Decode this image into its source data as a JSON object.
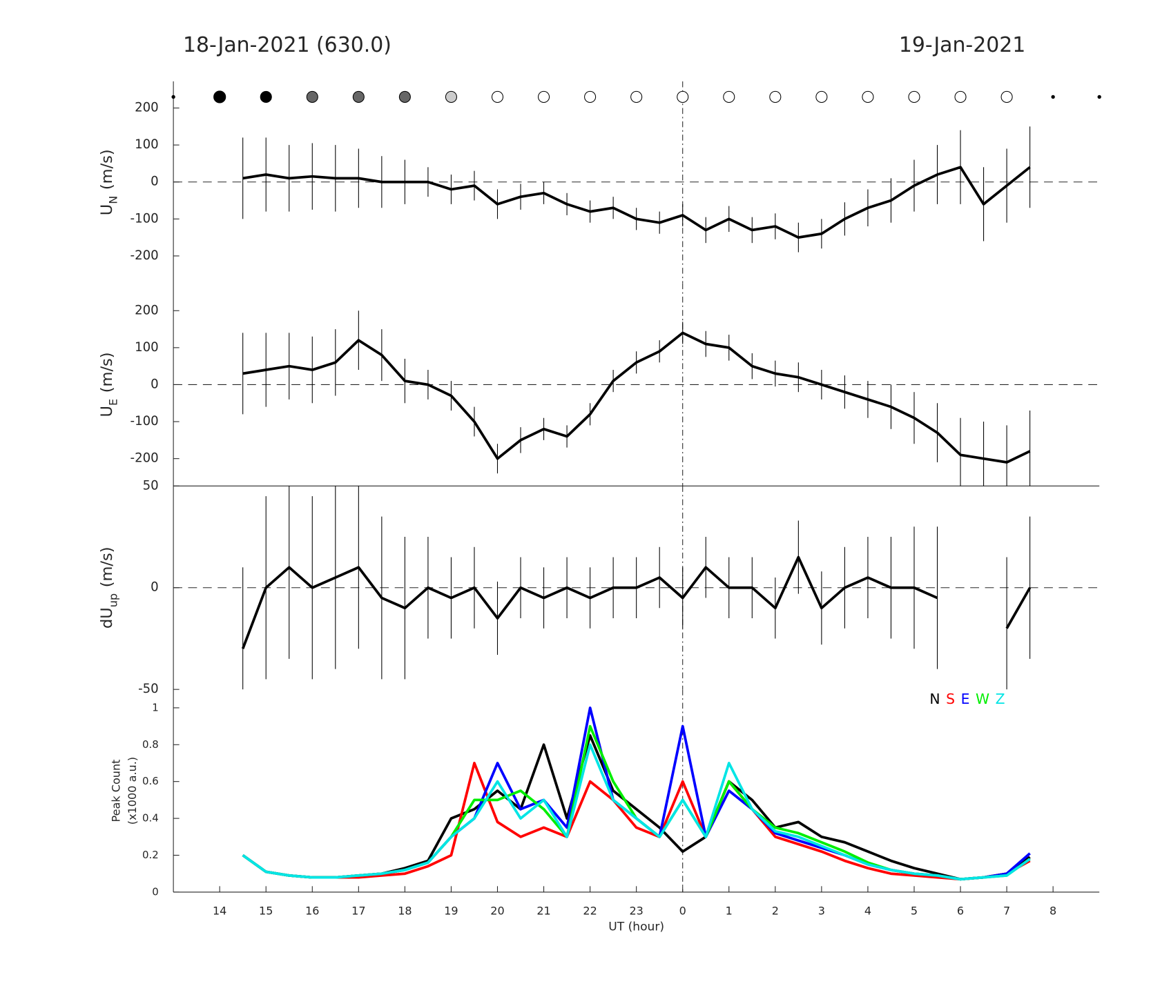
{
  "header": {
    "left": "18-Jan-2021 (630.0)",
    "right": "19-Jan-2021"
  },
  "chart_data": [
    {
      "type": "line",
      "ylabel": "U",
      "ylabel_sub": "N",
      "ylabel_unit": "(m/s)",
      "xlim": [
        13,
        33
      ],
      "ylim": [
        -274,
        272
      ],
      "yticks": [
        -200,
        -100,
        0,
        100,
        200
      ],
      "hline": 0,
      "vline": 24,
      "x": [
        14.5,
        15,
        15.5,
        16,
        16.5,
        17,
        17.5,
        18,
        18.5,
        19,
        19.5,
        20,
        20.5,
        21,
        21.5,
        22,
        22.5,
        23,
        23.5,
        24,
        24.5,
        25,
        25.5,
        26,
        26.5,
        27,
        27.5,
        28,
        28.5,
        29,
        29.5,
        30,
        30.5,
        31,
        31.5
      ],
      "series": [
        {
          "color": "#000000",
          "values": [
            10,
            20,
            10,
            15,
            10,
            10,
            0,
            0,
            0,
            -20,
            -10,
            -60,
            -40,
            -30,
            -60,
            -80,
            -70,
            -100,
            -110,
            -90,
            -130,
            -100,
            -130,
            -120,
            -150,
            -140,
            -100,
            -70,
            -50,
            -10,
            20,
            40,
            -60,
            -10,
            40
          ],
          "errors": [
            110,
            100,
            90,
            90,
            90,
            80,
            70,
            60,
            40,
            40,
            40,
            40,
            35,
            30,
            30,
            30,
            30,
            30,
            30,
            30,
            35,
            35,
            35,
            35,
            40,
            40,
            45,
            50,
            60,
            70,
            80,
            100,
            100,
            100,
            110
          ]
        }
      ],
      "markers": {
        "x": [
          13,
          14,
          15,
          16,
          17,
          18,
          19,
          20,
          21,
          22,
          23,
          24,
          25,
          26,
          27,
          28,
          29,
          30,
          31,
          32,
          33
        ],
        "colors": [
          "#000000",
          "#000000",
          "#000000",
          "#666666",
          "#666666",
          "#666666",
          "#cccccc",
          "#ffffff",
          "#ffffff",
          "#ffffff",
          "#ffffff",
          "#ffffff",
          "#ffffff",
          "#ffffff",
          "#ffffff",
          "#ffffff",
          "#ffffff",
          "#ffffff",
          "#ffffff",
          "#000000",
          "#000000"
        ],
        "sizes": [
          2,
          8,
          7.5,
          7.5,
          7.5,
          7.5,
          7.5,
          7.5,
          7.5,
          7.5,
          7.5,
          7.5,
          7.5,
          7.5,
          7.5,
          7.5,
          7.5,
          7.5,
          7.5,
          2,
          2
        ]
      }
    },
    {
      "type": "line",
      "ylabel": "U",
      "ylabel_sub": "E",
      "ylabel_unit": "(m/s)",
      "xlim": [
        13,
        33
      ],
      "ylim": [
        -274,
        274
      ],
      "yticks": [
        -200,
        -100,
        0,
        100,
        200
      ],
      "hline": 0,
      "vline": 24,
      "x": [
        14.5,
        15,
        15.5,
        16,
        16.5,
        17,
        17.5,
        18,
        18.5,
        19,
        19.5,
        20,
        20.5,
        21,
        21.5,
        22,
        22.5,
        23,
        23.5,
        24,
        24.5,
        25,
        25.5,
        26,
        26.5,
        27,
        27.5,
        28,
        28.5,
        29,
        29.5,
        30,
        30.5,
        31,
        31.5
      ],
      "series": [
        {
          "color": "#000000",
          "values": [
            30,
            40,
            50,
            40,
            60,
            120,
            80,
            10,
            0,
            -30,
            -100,
            -200,
            -150,
            -120,
            -140,
            -80,
            10,
            60,
            90,
            140,
            110,
            100,
            50,
            30,
            20,
            0,
            -20,
            -40,
            -60,
            -90,
            -130,
            -190,
            -200,
            -210,
            -180
          ],
          "errors": [
            110,
            100,
            90,
            90,
            90,
            80,
            70,
            60,
            40,
            40,
            40,
            40,
            35,
            30,
            30,
            30,
            30,
            30,
            30,
            30,
            35,
            35,
            35,
            35,
            40,
            40,
            45,
            50,
            60,
            70,
            80,
            100,
            100,
            100,
            110
          ]
        }
      ]
    },
    {
      "type": "line",
      "ylabel": "dU",
      "ylabel_sub": "up",
      "ylabel_unit": "(m/s)",
      "xlim": [
        13,
        33
      ],
      "ylim": [
        -50,
        50
      ],
      "yticks": [
        -50,
        0,
        50
      ],
      "hline": 0,
      "vline": 24,
      "x": [
        14.5,
        15,
        15.5,
        16,
        16.5,
        17,
        17.5,
        18,
        18.5,
        19,
        19.5,
        20,
        20.5,
        21,
        21.5,
        22,
        22.5,
        23,
        23.5,
        24,
        24.5,
        25,
        25.5,
        26,
        26.5,
        27,
        27.5,
        28,
        28.5,
        29,
        29.5,
        30,
        30.5,
        31,
        31.5
      ],
      "series": [
        {
          "color": "#000000",
          "values": [
            -30,
            0,
            10,
            0,
            5,
            10,
            -5,
            -10,
            0,
            -5,
            0,
            -15,
            0,
            -5,
            0,
            -5,
            0,
            0,
            5,
            -5,
            10,
            0,
            0,
            -10,
            15,
            -10,
            0,
            5,
            0,
            0,
            -5,
            null,
            null,
            -20,
            0
          ],
          "errors": [
            40,
            45,
            45,
            45,
            45,
            40,
            40,
            35,
            25,
            20,
            20,
            18,
            15,
            15,
            15,
            15,
            15,
            15,
            15,
            15,
            15,
            15,
            15,
            15,
            18,
            18,
            20,
            20,
            25,
            30,
            35,
            null,
            null,
            35,
            35
          ]
        }
      ]
    },
    {
      "type": "line",
      "ylabel": "Peak Count",
      "ylabel2": "(x1000 a.u.)",
      "xlabel": "UT (hour)",
      "xlim": [
        13,
        33
      ],
      "ylim": [
        0,
        1.1
      ],
      "yticks": [
        0,
        0.2,
        0.4,
        0.6,
        0.8,
        1
      ],
      "vline": 24,
      "xticks": [
        14,
        15,
        16,
        17,
        18,
        19,
        20,
        21,
        22,
        23,
        {
          "value": 24,
          "label": "0"
        },
        {
          "value": 25,
          "label": "1"
        },
        {
          "value": 26,
          "label": "2"
        },
        {
          "value": 27,
          "label": "3"
        },
        {
          "value": 28,
          "label": "4"
        },
        {
          "value": 29,
          "label": "5"
        },
        {
          "value": 30,
          "label": "6"
        },
        {
          "value": 31,
          "label": "7"
        },
        {
          "value": 32,
          "label": "8"
        }
      ],
      "x": [
        14.5,
        15,
        15.5,
        16,
        16.5,
        17,
        17.5,
        18,
        18.5,
        19,
        19.5,
        20,
        20.5,
        21,
        21.5,
        22,
        22.5,
        23,
        23.5,
        24,
        24.5,
        25,
        25.5,
        26,
        26.5,
        27,
        27.5,
        28,
        28.5,
        29,
        29.5,
        30,
        30.5,
        31,
        31.5
      ],
      "series": [
        {
          "name": "N",
          "color": "#000000",
          "values": [
            0.2,
            0.11,
            0.09,
            0.08,
            0.08,
            0.09,
            0.1,
            0.13,
            0.17,
            0.4,
            0.45,
            0.55,
            0.45,
            0.8,
            0.4,
            0.85,
            0.55,
            0.45,
            0.35,
            0.22,
            0.3,
            0.6,
            0.5,
            0.35,
            0.38,
            0.3,
            0.27,
            0.22,
            0.17,
            0.13,
            0.1,
            0.07,
            0.08,
            0.1,
            0.19
          ]
        },
        {
          "name": "S",
          "color": "#ff0000",
          "values": [
            0.2,
            0.11,
            0.09,
            0.08,
            0.08,
            0.08,
            0.09,
            0.1,
            0.14,
            0.2,
            0.7,
            0.38,
            0.3,
            0.35,
            0.3,
            0.6,
            0.5,
            0.35,
            0.3,
            0.6,
            0.3,
            0.6,
            0.45,
            0.3,
            0.26,
            0.22,
            0.17,
            0.13,
            0.1,
            0.09,
            0.08,
            0.07,
            0.08,
            0.1,
            0.17
          ]
        },
        {
          "name": "E",
          "color": "#0000ff",
          "values": [
            0.2,
            0.11,
            0.09,
            0.08,
            0.08,
            0.09,
            0.1,
            0.12,
            0.16,
            0.3,
            0.4,
            0.7,
            0.45,
            0.5,
            0.35,
            1.0,
            0.5,
            0.4,
            0.3,
            0.9,
            0.3,
            0.55,
            0.45,
            0.32,
            0.28,
            0.24,
            0.2,
            0.15,
            0.12,
            0.1,
            0.09,
            0.07,
            0.08,
            0.1,
            0.21
          ]
        },
        {
          "name": "W",
          "color": "#00ee00",
          "values": [
            0.2,
            0.11,
            0.09,
            0.08,
            0.08,
            0.09,
            0.1,
            0.12,
            0.16,
            0.3,
            0.5,
            0.5,
            0.55,
            0.45,
            0.3,
            0.9,
            0.6,
            0.4,
            0.3,
            0.5,
            0.3,
            0.6,
            0.45,
            0.35,
            0.32,
            0.27,
            0.22,
            0.16,
            0.12,
            0.1,
            0.09,
            0.07,
            0.08,
            0.09,
            0.18
          ]
        },
        {
          "name": "Z",
          "color": "#00e5e5",
          "values": [
            0.2,
            0.11,
            0.09,
            0.08,
            0.08,
            0.09,
            0.1,
            0.12,
            0.16,
            0.3,
            0.4,
            0.6,
            0.4,
            0.5,
            0.3,
            0.8,
            0.5,
            0.4,
            0.3,
            0.5,
            0.3,
            0.7,
            0.45,
            0.33,
            0.3,
            0.25,
            0.2,
            0.15,
            0.12,
            0.1,
            0.09,
            0.07,
            0.08,
            0.09,
            0.18
          ]
        }
      ],
      "legend": "upper right"
    }
  ]
}
